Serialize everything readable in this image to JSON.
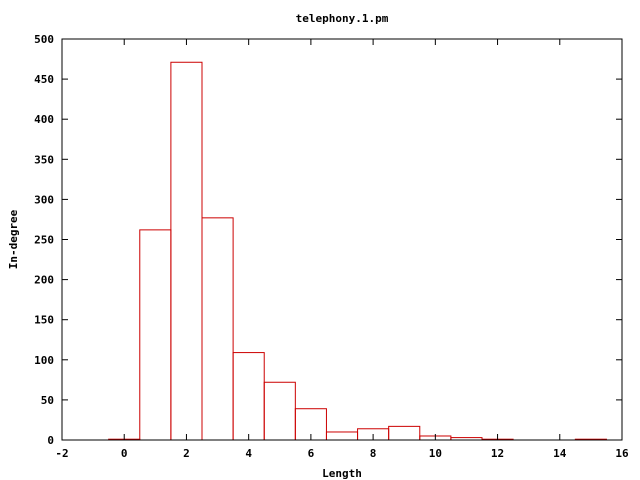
{
  "chart_data": {
    "type": "bar",
    "title": "telephony.1.pm",
    "xlabel": "Length",
    "ylabel": "In-degree",
    "xlim": [
      -2,
      16
    ],
    "ylim": [
      0,
      500
    ],
    "xticks": [
      -2,
      0,
      2,
      4,
      6,
      8,
      10,
      12,
      14,
      16
    ],
    "yticks": [
      0,
      50,
      100,
      150,
      200,
      250,
      300,
      350,
      400,
      450,
      500
    ],
    "bar_width": 1,
    "bar_color": "#cc0000",
    "grid": false,
    "legend": "none",
    "x": [
      0,
      1,
      2,
      3,
      4,
      5,
      6,
      7,
      8,
      9,
      10,
      11,
      12,
      13,
      14,
      15
    ],
    "values": [
      1,
      262,
      471,
      277,
      109,
      72,
      39,
      10,
      14,
      17,
      5,
      3,
      1,
      0,
      0,
      1
    ]
  }
}
